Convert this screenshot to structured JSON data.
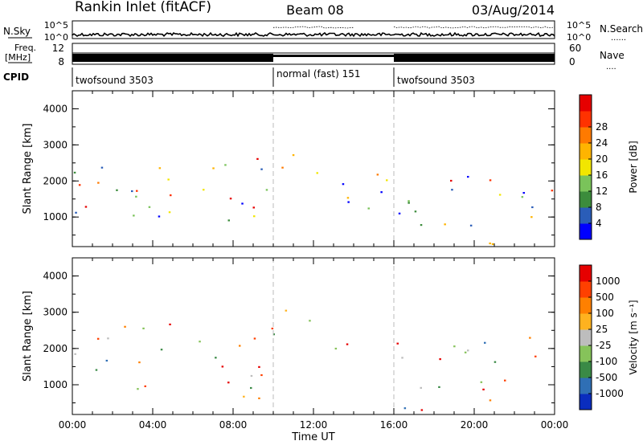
{
  "header": {
    "station": "Rankin Inlet (fitACF)",
    "beam": "Beam 08",
    "date": "03/Aug/2014"
  },
  "top_strip": {
    "nsky_label": "N.Sky",
    "nsky_ticks": [
      "10^5",
      "10^0"
    ],
    "nsearch_label": "N.Search",
    "nsearch_ticks": [
      "10^5",
      "10^0"
    ],
    "freq_label": "Freq.",
    "freq_unit": "[MHz]",
    "freq_ticks": [
      "12",
      "8"
    ],
    "nave_label": "Nave",
    "nave_ticks": [
      "60",
      "0"
    ],
    "cpid_label": "CPID",
    "dots": "......",
    "dots2": "....",
    "cpid_segments": [
      {
        "start": 0,
        "end": 10,
        "label": "twofsound 3503"
      },
      {
        "start": 10,
        "end": 16,
        "label": "normal (fast) 151"
      },
      {
        "start": 16,
        "end": 24,
        "label": "twofsound 3503"
      }
    ]
  },
  "chart_data": [
    {
      "type": "heatmap",
      "name": "power-panel",
      "ylabel": "Slant Range [km]",
      "x_ticks": [
        "00:00",
        "04:00",
        "08:00",
        "12:00",
        "16:00",
        "20:00",
        "00:00"
      ],
      "x_range_hours": [
        0,
        24
      ],
      "y_ticks": [
        1000,
        2000,
        3000,
        4000
      ],
      "ylim": [
        180,
        4500
      ],
      "colorbar": {
        "label": "Power [dB]",
        "ticks": [
          "4",
          "8",
          "12",
          "16",
          "20",
          "24",
          "28"
        ],
        "colors": [
          "#0000ff",
          "#2a5db8",
          "#3c8c3c",
          "#7ac35a",
          "#f2e600",
          "#ffb400",
          "#ff7a00",
          "#ff3200",
          "#e60000"
        ]
      },
      "bands": [
        {
          "t0": 0.0,
          "t1": 10.0,
          "r0": 900,
          "r1": 2700,
          "density": 0.85
        },
        {
          "t0": 10.0,
          "t1": 12.0,
          "r0": 2000,
          "r1": 3000,
          "density": 0.55
        },
        {
          "t0": 12.0,
          "t1": 16.5,
          "r0": 900,
          "r1": 2300,
          "density": 0.8
        },
        {
          "t0": 16.5,
          "t1": 24.0,
          "r0": 1000,
          "r1": 2300,
          "density": 0.75
        },
        {
          "t0": 16.0,
          "t1": 22.0,
          "r0": 200,
          "r1": 900,
          "density": 0.6
        }
      ]
    },
    {
      "type": "heatmap",
      "name": "velocity-panel",
      "ylabel": "Slant Range [km]",
      "xlabel": "Time UT",
      "x_ticks": [
        "00:00",
        "04:00",
        "08:00",
        "12:00",
        "16:00",
        "20:00",
        "00:00"
      ],
      "x_range_hours": [
        0,
        24
      ],
      "y_ticks": [
        1000,
        2000,
        3000,
        4000
      ],
      "ylim": [
        180,
        4500
      ],
      "colorbar": {
        "label": "Velocity [m s⁻¹]",
        "ticks": [
          "1000",
          "500",
          "100",
          "25",
          "-25",
          "-100",
          "-500",
          "-1000"
        ],
        "colors": [
          "#0a2dbe",
          "#2f6fb5",
          "#3a8a46",
          "#86c35a",
          "#bdbdbd",
          "#ffb21f",
          "#ff8000",
          "#ff4000",
          "#e60000"
        ]
      },
      "bands": [
        {
          "t0": 0.0,
          "t1": 10.0,
          "r0": 1500,
          "r1": 2700,
          "density": 0.8
        },
        {
          "t0": 10.0,
          "t1": 12.0,
          "r0": 2200,
          "r1": 3100,
          "density": 0.6
        },
        {
          "t0": 12.0,
          "t1": 24.0,
          "r0": 1600,
          "r1": 2400,
          "density": 0.7
        },
        {
          "t0": 0.0,
          "t1": 10.0,
          "r0": 600,
          "r1": 1500,
          "density": 0.55
        },
        {
          "t0": 16.0,
          "t1": 22.0,
          "r0": 300,
          "r1": 1300,
          "density": 0.7
        }
      ]
    }
  ]
}
